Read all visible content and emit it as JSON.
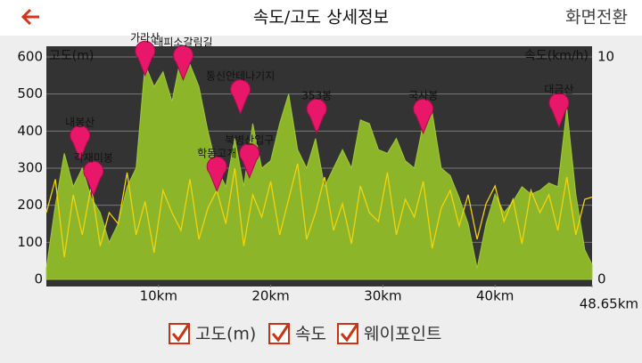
{
  "header": {
    "title": "속도/고도 상세정보",
    "action": "화면전환"
  },
  "chart_data": {
    "type": "elevation-speed",
    "y_label": "고도(m)",
    "y2_label": "속도(km/h)",
    "xlim": [
      0,
      48.65
    ],
    "xticks": [
      {
        "value": 10,
        "label": "10km"
      },
      {
        "value": 20,
        "label": "20km"
      },
      {
        "value": 30,
        "label": "30km"
      },
      {
        "value": 40,
        "label": "40km"
      },
      {
        "value": 48.65,
        "label": "48.65km"
      }
    ],
    "ylim": [
      0,
      600
    ],
    "yticks": [
      0,
      100,
      200,
      300,
      400,
      500,
      600
    ],
    "y2lim": [
      0,
      10
    ],
    "y2ticks": [
      0,
      10
    ],
    "grid": true,
    "x": [
      0,
      0.8,
      1.6,
      2.4,
      3.2,
      4.0,
      4.8,
      5.6,
      6.4,
      7.2,
      8.0,
      8.8,
      9.6,
      10.4,
      11.2,
      12.0,
      12.8,
      13.6,
      14.4,
      15.2,
      16.0,
      16.8,
      17.6,
      18.4,
      19.2,
      20.0,
      20.8,
      21.6,
      22.4,
      23.2,
      24.0,
      24.8,
      25.6,
      26.4,
      27.2,
      28.0,
      28.8,
      29.6,
      30.4,
      31.2,
      32.0,
      32.8,
      33.6,
      34.4,
      35.2,
      36.0,
      36.8,
      37.6,
      38.4,
      39.2,
      40.0,
      40.8,
      41.6,
      42.4,
      43.2,
      44.0,
      44.8,
      45.6,
      46.4,
      47.2,
      48.0,
      48.65
    ],
    "series": [
      {
        "name": "고도(m)",
        "color": "#8db52a",
        "values": [
          30,
          200,
          340,
          250,
          300,
          220,
          180,
          100,
          150,
          250,
          300,
          580,
          520,
          560,
          480,
          600,
          580,
          520,
          400,
          300,
          250,
          380,
          250,
          420,
          300,
          320,
          420,
          500,
          350,
          300,
          380,
          250,
          300,
          350,
          300,
          430,
          420,
          350,
          340,
          380,
          320,
          300,
          420,
          450,
          300,
          280,
          220,
          150,
          30,
          150,
          230,
          180,
          210,
          250,
          230,
          240,
          260,
          250,
          460,
          230,
          80,
          40
        ]
      },
      {
        "name": "속도",
        "color": "#f2d40c",
        "axis": "y2",
        "values": [
          3,
          4.5,
          1,
          3.8,
          2,
          4.2,
          1.5,
          3,
          2.5,
          4.8,
          2,
          3.5,
          1.2,
          4,
          3,
          2.2,
          4.5,
          1.8,
          3.2,
          4,
          2.5,
          5,
          1.5,
          3.8,
          2.8,
          4.4,
          2,
          3.6,
          5.2,
          1.8,
          3,
          4.6,
          2.2,
          3.4,
          1.6,
          4.2,
          3,
          2.6,
          4.8,
          2,
          3.6,
          2.8,
          4.4,
          1.4,
          3.2,
          4,
          2.4,
          3.8,
          1.8,
          3.4,
          4.2,
          2.6,
          3.6,
          1.6,
          4,
          3,
          3.8,
          2.2,
          4.6,
          2,
          3.6,
          3.7
        ]
      }
    ],
    "waypoint_legend": "웨이포인트",
    "waypoint_color": "#e8176a",
    "waypoints": [
      {
        "name": "내봉산",
        "x": 3.0,
        "y": 322
      },
      {
        "name": "각재미봉",
        "x": 4.2,
        "y": 226
      },
      {
        "name": "가라산",
        "x": 8.8,
        "y": 550
      },
      {
        "name": "대피소갈림길",
        "x": 12.2,
        "y": 538
      },
      {
        "name": "학동고개",
        "x": 15.2,
        "y": 238
      },
      {
        "name": "통신안테나기지",
        "x": 17.3,
        "y": 446
      },
      {
        "name": "북병산입구",
        "x": 18.1,
        "y": 274
      },
      {
        "name": "353봉",
        "x": 24.1,
        "y": 394
      },
      {
        "name": "국사봉",
        "x": 33.6,
        "y": 394
      },
      {
        "name": "대금산",
        "x": 45.7,
        "y": 410
      }
    ]
  }
}
